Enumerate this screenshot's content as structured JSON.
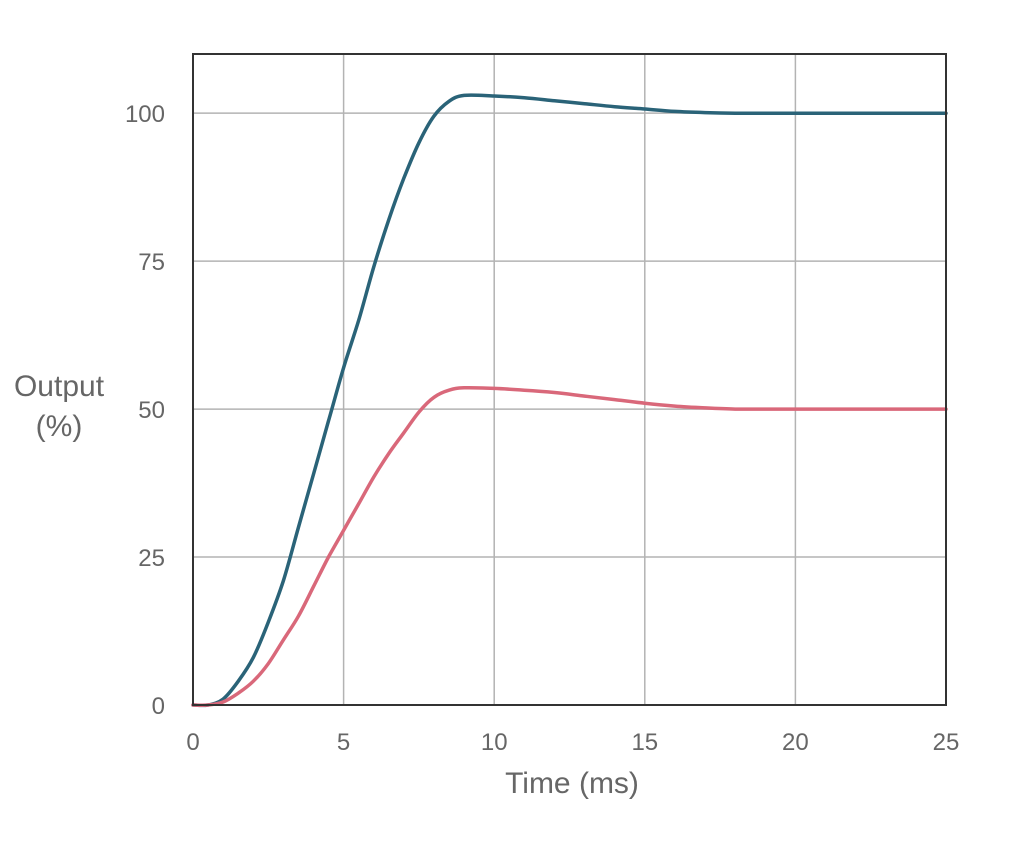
{
  "chart_data": {
    "type": "line",
    "title": "",
    "xlabel": "Time (ms)",
    "ylabel_lines": [
      "Output",
      "(%)"
    ],
    "xlim": [
      0,
      25
    ],
    "ylim": [
      0,
      110
    ],
    "x_ticks": [
      0,
      5,
      10,
      15,
      20,
      25
    ],
    "y_ticks": [
      0,
      25,
      50,
      75,
      100
    ],
    "x_tick_labels": [
      "0",
      "5",
      "10",
      "15",
      "20",
      "25"
    ],
    "y_tick_labels": [
      "0",
      "25",
      "50",
      "75",
      "100"
    ],
    "grid": true,
    "legend": "none",
    "series": [
      {
        "color": "#2a6378",
        "x": [
          0,
          0.5,
          1,
          1.5,
          2,
          2.5,
          3,
          3.5,
          4,
          4.5,
          5,
          5.5,
          6,
          6.5,
          7,
          7.5,
          8,
          8.5,
          9,
          10,
          11,
          12,
          13,
          14,
          15,
          16,
          17,
          18,
          19,
          20,
          21,
          22,
          23,
          24,
          25
        ],
        "y": [
          0,
          0,
          1,
          4,
          8,
          14,
          21,
          30,
          39,
          48,
          57,
          65,
          74,
          82,
          89,
          95,
          99.5,
          102,
          103,
          102.9,
          102.6,
          102.1,
          101.6,
          101.1,
          100.7,
          100.3,
          100.1,
          100,
          100,
          100,
          100,
          100,
          100,
          100,
          100
        ]
      },
      {
        "color": "#d9687a",
        "x": [
          0,
          0.5,
          1,
          1.5,
          2,
          2.5,
          3,
          3.5,
          4,
          4.5,
          5,
          5.5,
          6,
          6.5,
          7,
          7.5,
          8,
          8.5,
          9,
          10,
          11,
          12,
          13,
          14,
          15,
          16,
          17,
          18,
          19,
          20,
          21,
          22,
          23,
          24,
          25
        ],
        "y": [
          0,
          0,
          0.5,
          2,
          4,
          7,
          11,
          15,
          20,
          25,
          29.5,
          34,
          38.5,
          42.5,
          46,
          49.5,
          52,
          53.2,
          53.6,
          53.5,
          53.2,
          52.8,
          52.2,
          51.6,
          51,
          50.5,
          50.2,
          50,
          50,
          50,
          50,
          50,
          50,
          50,
          50
        ]
      }
    ]
  }
}
